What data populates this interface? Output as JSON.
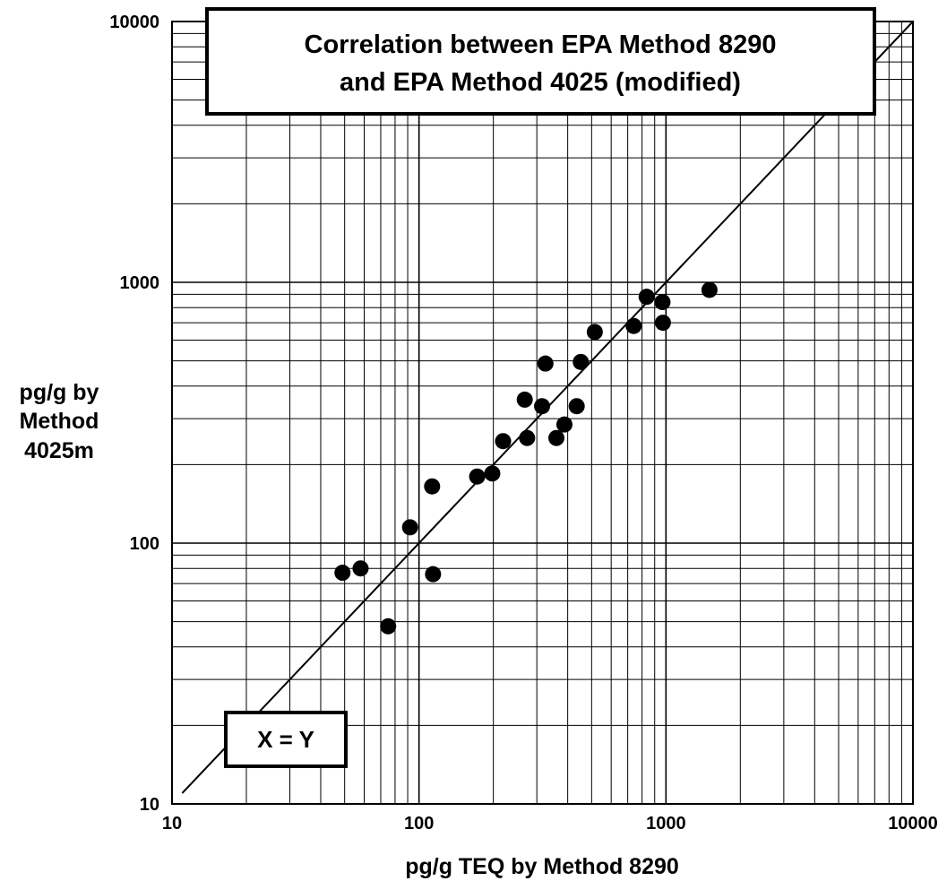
{
  "chart_data": {
    "type": "scatter",
    "title": [
      "Correlation between EPA Method 8290",
      "and EPA Method 4025 (modified)"
    ],
    "xlabel": "pg/g TEQ by Method 8290",
    "ylabel": [
      "pg/g by",
      "Method",
      "4025m"
    ],
    "xscale": "log",
    "yscale": "log",
    "xlim": [
      10,
      10000
    ],
    "ylim": [
      10,
      10000
    ],
    "x_ticks": [
      "10",
      "100",
      "1000",
      "10000"
    ],
    "y_ticks": [
      "10",
      "100",
      "1000",
      "10000"
    ],
    "grid": true,
    "reference_line": {
      "label": "X = Y",
      "x": [
        11,
        10000
      ],
      "y": [
        11,
        10000
      ]
    },
    "points": [
      {
        "x": 49,
        "y": 77
      },
      {
        "x": 58,
        "y": 80
      },
      {
        "x": 75,
        "y": 48
      },
      {
        "x": 92,
        "y": 115
      },
      {
        "x": 113,
        "y": 165
      },
      {
        "x": 114,
        "y": 76
      },
      {
        "x": 172,
        "y": 180
      },
      {
        "x": 198,
        "y": 185
      },
      {
        "x": 219,
        "y": 246
      },
      {
        "x": 268,
        "y": 355
      },
      {
        "x": 274,
        "y": 253
      },
      {
        "x": 315,
        "y": 335
      },
      {
        "x": 325,
        "y": 488
      },
      {
        "x": 360,
        "y": 253
      },
      {
        "x": 388,
        "y": 285
      },
      {
        "x": 435,
        "y": 335
      },
      {
        "x": 452,
        "y": 495
      },
      {
        "x": 515,
        "y": 645
      },
      {
        "x": 740,
        "y": 680
      },
      {
        "x": 835,
        "y": 880
      },
      {
        "x": 968,
        "y": 840
      },
      {
        "x": 972,
        "y": 700
      },
      {
        "x": 1500,
        "y": 935
      }
    ]
  }
}
